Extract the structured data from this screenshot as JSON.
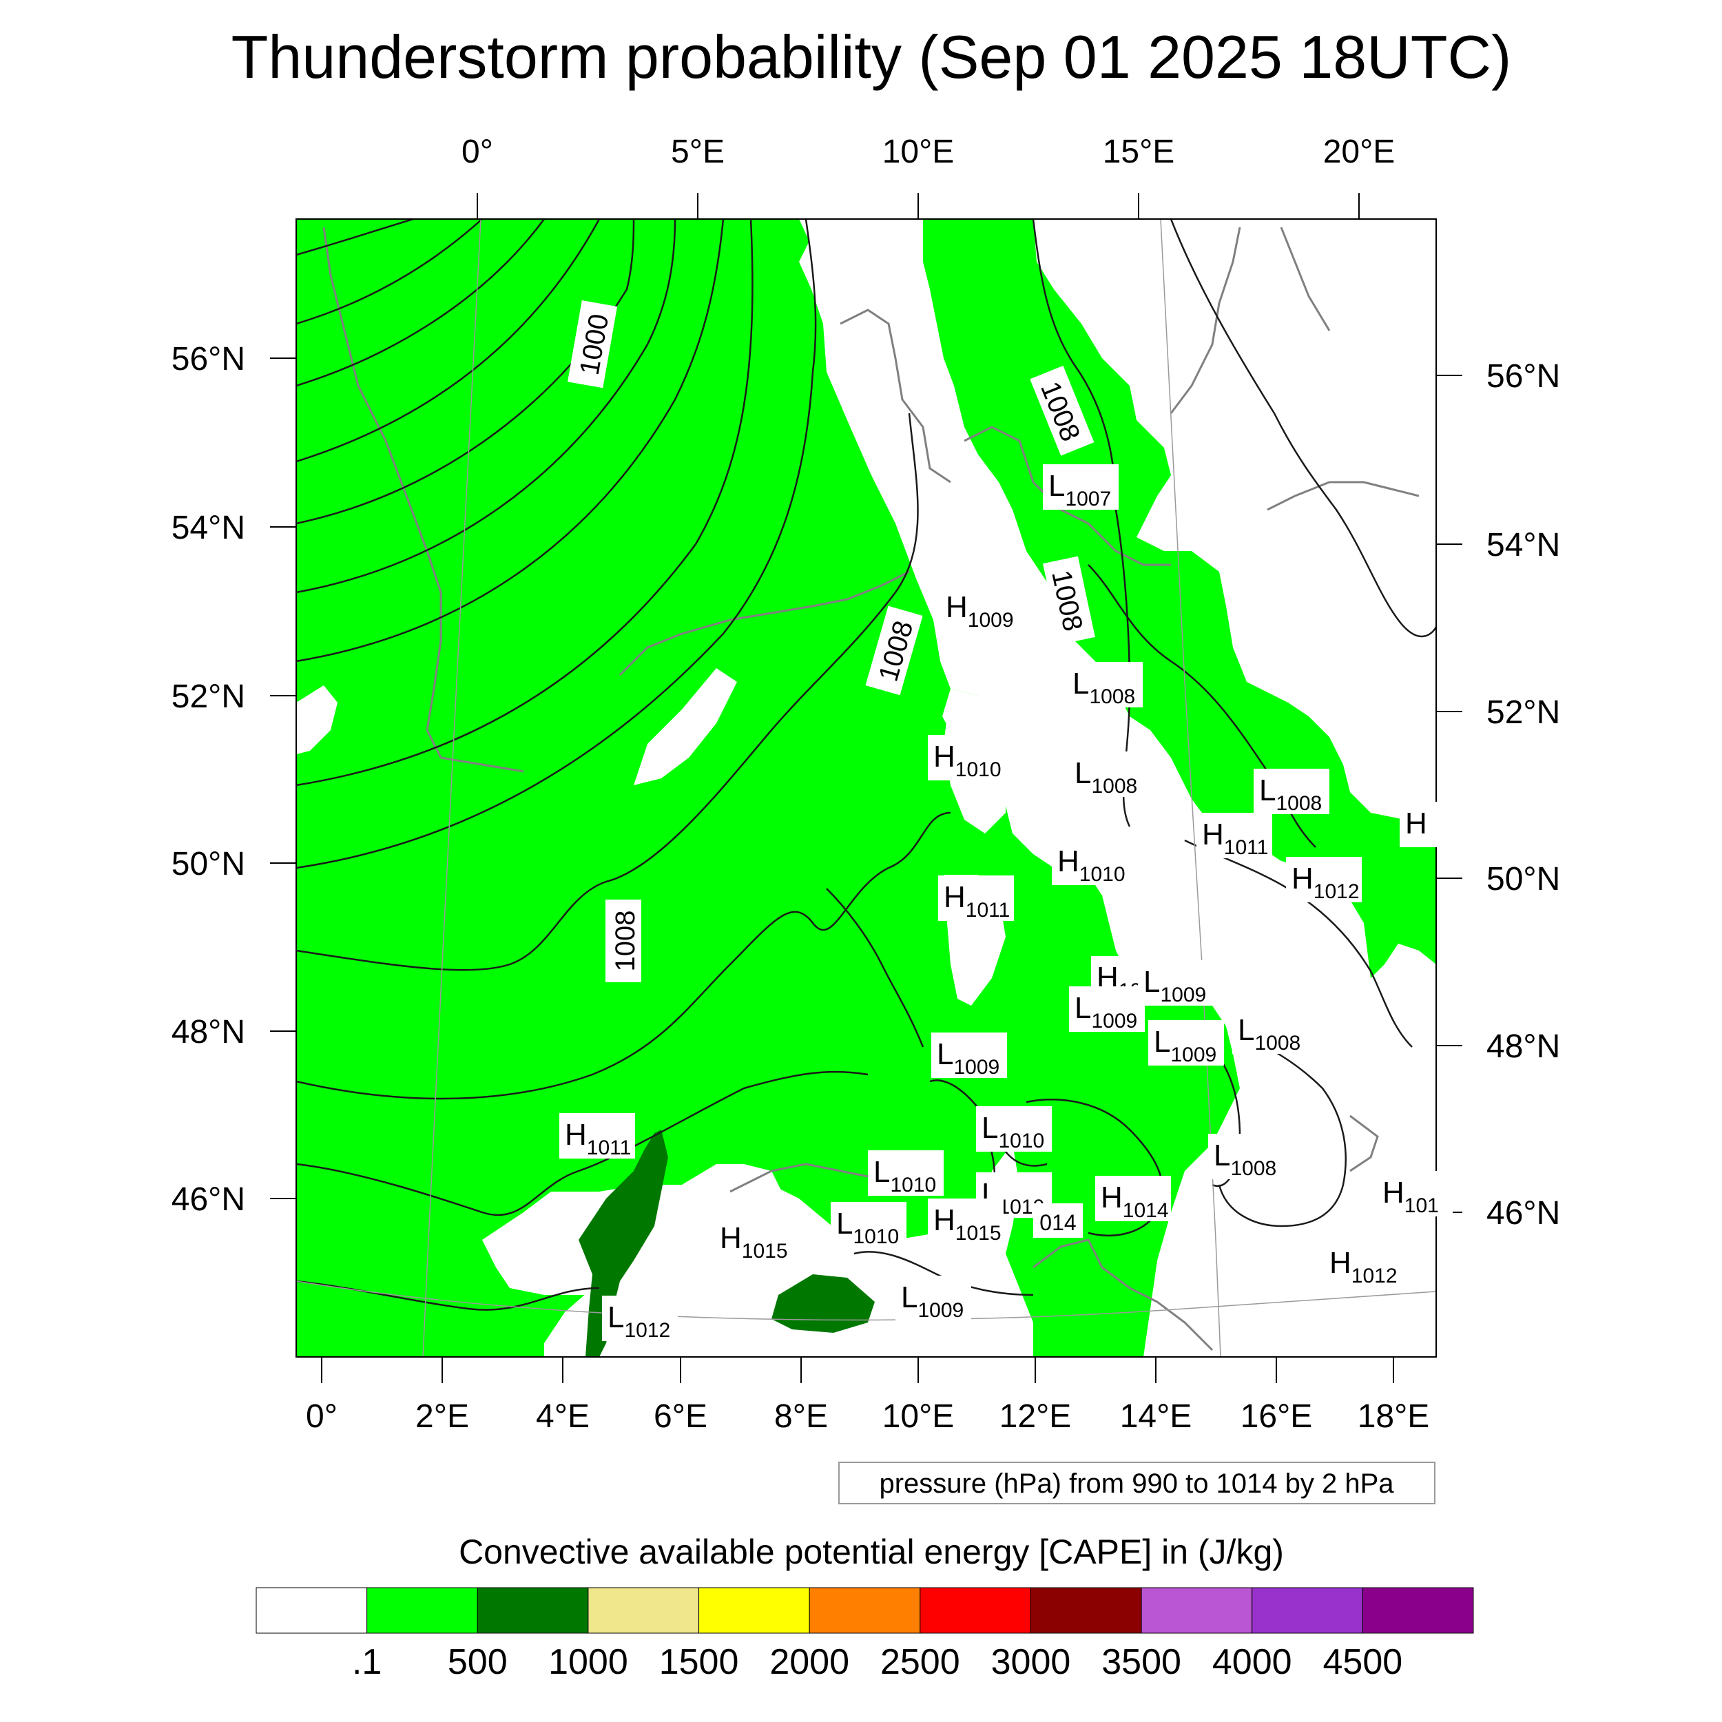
{
  "title": "Thunderstorm probability (Sep 01 2025 18UTC)",
  "top_lon_labels": [
    "0°",
    "5°E",
    "10°E",
    "15°E",
    "20°E"
  ],
  "bottom_lon_labels": [
    "0°",
    "2°E",
    "4°E",
    "6°E",
    "8°E",
    "10°E",
    "12°E",
    "14°E",
    "16°E",
    "18°E"
  ],
  "left_lat_labels": [
    "56°N",
    "54°N",
    "52°N",
    "50°N",
    "48°N",
    "46°N"
  ],
  "right_lat_labels": [
    "56°N",
    "54°N",
    "52°N",
    "50°N",
    "48°N",
    "46°N"
  ],
  "isobar_labels": [
    "1000",
    "1008",
    "1008",
    "1008",
    "1008"
  ],
  "pressure_centers": [
    {
      "type": "L",
      "value": "1007"
    },
    {
      "type": "H",
      "value": "1009"
    },
    {
      "type": "L",
      "value": "1008"
    },
    {
      "type": "H",
      "value": "1010"
    },
    {
      "type": "L",
      "value": "1008"
    },
    {
      "type": "L",
      "value": "1008"
    },
    {
      "type": "H",
      "value": "1011"
    },
    {
      "type": "H",
      "value": "1012"
    },
    {
      "type": "H",
      "value": "1010"
    },
    {
      "type": "H",
      "value": "1011"
    },
    {
      "type": "H",
      "value": "10"
    },
    {
      "type": "L",
      "value": "1009"
    },
    {
      "type": "L",
      "value": "1009"
    },
    {
      "type": "L",
      "value": "1008"
    },
    {
      "type": "L",
      "value": "1009"
    },
    {
      "type": "L",
      "value": "1009"
    },
    {
      "type": "L",
      "value": "1010"
    },
    {
      "type": "H",
      "value": "1011"
    },
    {
      "type": "L",
      "value": "1010"
    },
    {
      "type": "L",
      "value": "1008"
    },
    {
      "type": "L",
      "value": "1010"
    },
    {
      "type": "H",
      "value": "1014"
    },
    {
      "type": "L",
      "value": "1010"
    },
    {
      "type": "H",
      "value": "1015"
    },
    {
      "type": "H",
      "value": "1015"
    },
    {
      "type": "L",
      "value": "1012"
    },
    {
      "type": "L",
      "value": "1009"
    },
    {
      "type": "H",
      "value": "1012"
    },
    {
      "type": "H",
      "value": "101"
    },
    {
      "type": "H",
      "value": ""
    }
  ],
  "partial_label": "014",
  "contour_info": "pressure (hPa) from 990 to 1014 by 2 hPa",
  "colorbar_title": "Convective available potential energy [CAPE] in (J/kg)",
  "colorbar_colors": [
    "#ffffff",
    "#00ff00",
    "#007800",
    "#f0e68c",
    "#ffff00",
    "#ff8000",
    "#ff0000",
    "#8b0000",
    "#ba55d3",
    "#9932cc",
    "#8b008b"
  ],
  "colorbar_ticks": [
    ".1",
    "500",
    "1000",
    "1500",
    "2000",
    "2500",
    "3000",
    "3500",
    "4000",
    "4500"
  ],
  "fill_colors": {
    "background": "#ffffff",
    "light_green": "#00ff00",
    "dark_green": "#007800",
    "coast": "#808080",
    "isobar": "#1a1a1a"
  }
}
